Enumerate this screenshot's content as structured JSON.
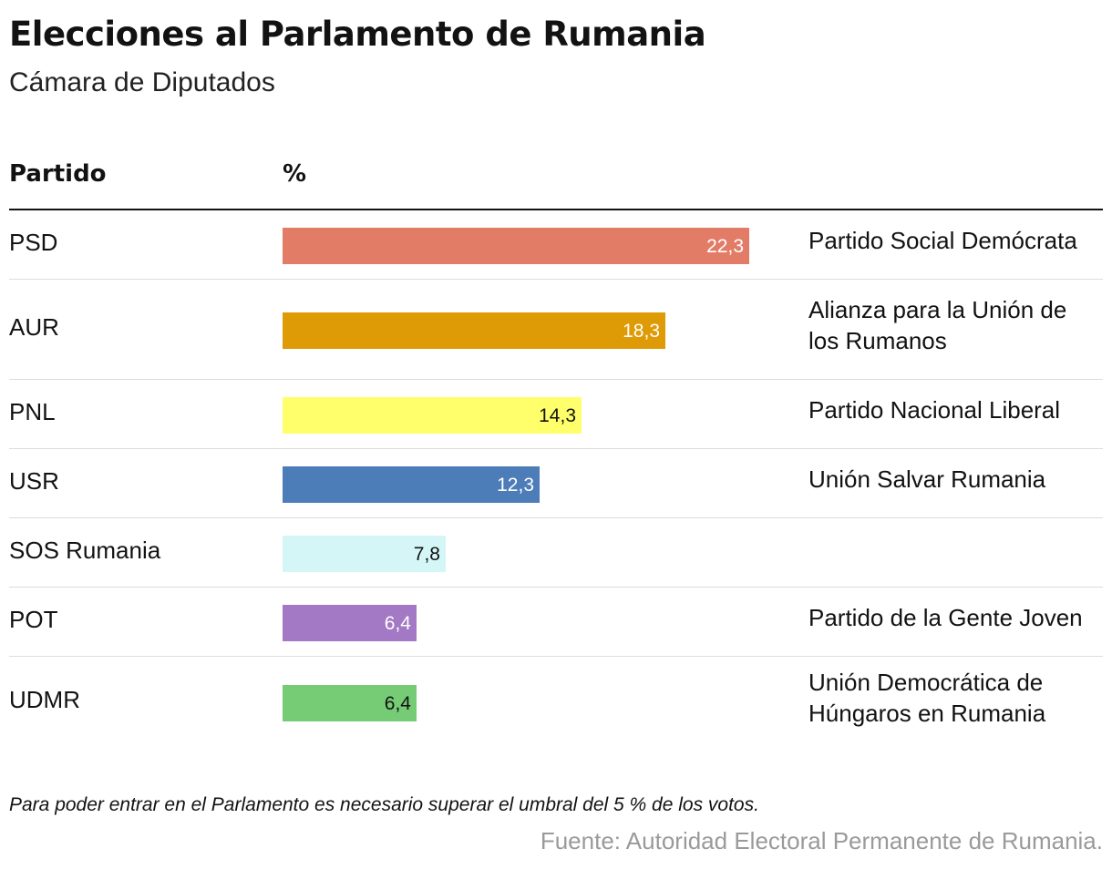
{
  "title": "Elecciones al Parlamento de Rumania",
  "subtitle": "Cámara de Diputados",
  "columns": {
    "party": "Partido",
    "percent": "%"
  },
  "note": "Para poder entrar en el Parlamento es necesario superar el umbral del 5 % de los votos.",
  "source": "Fuente: Autoridad Electoral Permanente de Rumania.",
  "chart_data": {
    "type": "bar",
    "orientation": "horizontal",
    "xlim": [
      0,
      100
    ],
    "value_format": "decimal comma",
    "categories": [
      "PSD",
      "AUR",
      "PNL",
      "USR",
      "SOS Rumania",
      "POT",
      "UDMR"
    ],
    "values": [
      22.3,
      18.3,
      14.3,
      12.3,
      7.8,
      6.4,
      6.4
    ],
    "value_labels": [
      "22,3",
      "18,3",
      "14,3",
      "12,3",
      "7,8",
      "6,4",
      "6,4"
    ],
    "full_names": [
      "Partido Social Demócrata",
      "Alianza para la Unión de los Rumanos",
      "Partido Nacional Liberal",
      "Unión Salvar Rumania",
      "",
      "Partido de la Gente Joven",
      "Unión Democrática de Húngaros en Rumania"
    ],
    "colors": [
      "#e27c67",
      "#de9b06",
      "#ffff6b",
      "#4c7db8",
      "#d5f6f7",
      "#a378c4",
      "#76cc75"
    ],
    "label_colors": [
      "#ffffff",
      "#ffffff",
      "#121212",
      "#ffffff",
      "#121212",
      "#ffffff",
      "#121212"
    ]
  }
}
